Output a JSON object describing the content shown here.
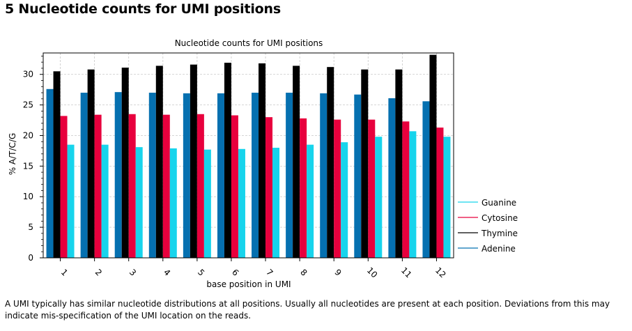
{
  "page": {
    "heading": "5 Nucleotide counts for UMI positions",
    "caption": "A UMI typically has similar nucleotide distributions at all positions. Usually all nucleotides are present at each position. Deviations from this may indicate mis-specification of the UMI location on the reads."
  },
  "chart_data": {
    "type": "bar",
    "title": "Nucleotide counts for UMI positions",
    "xlabel": "base position in UMI",
    "ylabel": "% A/T/C/G",
    "ylim": [
      0,
      33.5
    ],
    "yticks": [
      0,
      5,
      10,
      15,
      20,
      25,
      30
    ],
    "grid": true,
    "legend_position": "right-bottom",
    "categories": [
      "1",
      "2",
      "3",
      "4",
      "5",
      "6",
      "7",
      "8",
      "9",
      "10",
      "11",
      "12"
    ],
    "series": [
      {
        "name": "Adenine",
        "color": "#0570b0",
        "values": [
          27.6,
          27.0,
          27.1,
          27.0,
          26.9,
          26.9,
          27.0,
          27.0,
          26.9,
          26.7,
          26.1,
          25.6
        ]
      },
      {
        "name": "Thymine",
        "color": "#000000",
        "values": [
          30.5,
          30.8,
          31.1,
          31.4,
          31.6,
          31.9,
          31.8,
          31.4,
          31.2,
          30.8,
          30.8,
          33.2
        ]
      },
      {
        "name": "Cytosine",
        "color": "#e8003d",
        "values": [
          23.2,
          23.4,
          23.5,
          23.4,
          23.5,
          23.3,
          23.0,
          22.8,
          22.6,
          22.6,
          22.3,
          21.3
        ]
      },
      {
        "name": "Guanine",
        "color": "#17d4ec",
        "values": [
          18.5,
          18.5,
          18.1,
          17.9,
          17.7,
          17.8,
          18.0,
          18.5,
          18.9,
          19.8,
          20.7,
          19.8
        ]
      }
    ],
    "legend_order": [
      "Guanine",
      "Cytosine",
      "Thymine",
      "Adenine"
    ]
  }
}
